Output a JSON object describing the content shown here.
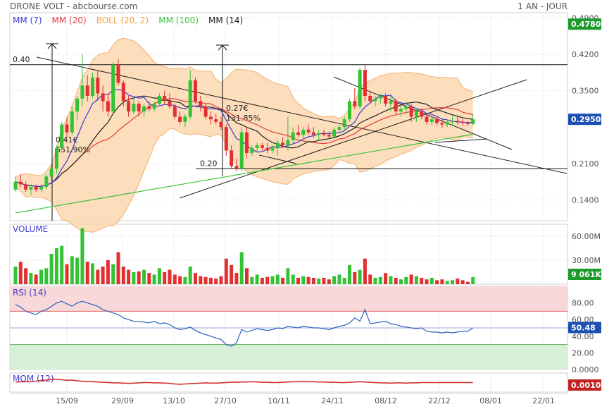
{
  "header": {
    "title": "DRONE VOLT - abcbourse.com",
    "period": "1 AN - JOUR"
  },
  "legend": [
    {
      "label": "MM (7)",
      "color": "#3b3bd6"
    },
    {
      "label": "MM (20)",
      "color": "#e23c3c"
    },
    {
      "label": "BOLL (20, 2)",
      "color": "#f0a040"
    },
    {
      "label": "MM (100)",
      "color": "#3cc23c"
    },
    {
      "label": "MM (14)",
      "color": "#222222"
    }
  ],
  "colors": {
    "up": "#33c233",
    "down": "#e23030",
    "boll_fill": "#fbd7b0",
    "boll_line": "#f4b070",
    "rsi_high": "#f8d8d8",
    "rsi_low": "#d8efd8",
    "badge_green": "#1d9a2b",
    "badge_blue": "#1b4fb2",
    "badge_red": "#c42222"
  },
  "x_ticks": [
    "15/09",
    "29/09",
    "13/10",
    "27/10",
    "10/11",
    "24/11",
    "08/12",
    "22/12",
    "08/01",
    "22/01"
  ],
  "price_axis": {
    "ticks": [
      "0.4900",
      "0.4200",
      "0.3500",
      "0.2100",
      "0.1400"
    ],
    "last": "0.2950",
    "badge": "0.4780",
    "ymin": 0.1,
    "ymax": 0.5
  },
  "volume_axis": {
    "label": "VOLUME",
    "ticks": [
      "60.00M",
      "30.00M"
    ],
    "last": "9 061K"
  },
  "rsi_axis": {
    "label": "RSI (14)",
    "ticks": [
      "80.00",
      "60.00",
      "40.00",
      "20.00",
      "0.0000"
    ],
    "last": "50.48"
  },
  "mom_axis": {
    "label": "MOM (12)",
    "last": "0.0010"
  },
  "annotations": [
    {
      "text": "0.40"
    },
    {
      "text": "0.20"
    },
    {
      "text": "0.41€"
    },
    {
      "text": "651.90%"
    },
    {
      "text": "0.27€"
    },
    {
      "text": "131.85%"
    }
  ],
  "chart_data": {
    "type": "candlestick",
    "series": [
      {
        "name": "OHLC",
        "values": [
          [
            0.16,
            0.185,
            0.155,
            0.175
          ],
          [
            0.175,
            0.19,
            0.165,
            0.17
          ],
          [
            0.17,
            0.175,
            0.155,
            0.16
          ],
          [
            0.16,
            0.17,
            0.15,
            0.165
          ],
          [
            0.165,
            0.17,
            0.155,
            0.16
          ],
          [
            0.16,
            0.17,
            0.155,
            0.165
          ],
          [
            0.165,
            0.19,
            0.16,
            0.185
          ],
          [
            0.185,
            0.21,
            0.175,
            0.2
          ],
          [
            0.2,
            0.245,
            0.19,
            0.24
          ],
          [
            0.24,
            0.29,
            0.235,
            0.285
          ],
          [
            0.285,
            0.3,
            0.26,
            0.27
          ],
          [
            0.27,
            0.32,
            0.265,
            0.31
          ],
          [
            0.31,
            0.34,
            0.295,
            0.335
          ],
          [
            0.335,
            0.42,
            0.32,
            0.36
          ],
          [
            0.36,
            0.38,
            0.33,
            0.34
          ],
          [
            0.34,
            0.385,
            0.335,
            0.375
          ],
          [
            0.375,
            0.39,
            0.33,
            0.345
          ],
          [
            0.345,
            0.36,
            0.31,
            0.33
          ],
          [
            0.33,
            0.345,
            0.3,
            0.31
          ],
          [
            0.31,
            0.405,
            0.305,
            0.4
          ],
          [
            0.4,
            0.41,
            0.36,
            0.365
          ],
          [
            0.365,
            0.37,
            0.32,
            0.33
          ],
          [
            0.33,
            0.34,
            0.3,
            0.31
          ],
          [
            0.31,
            0.335,
            0.305,
            0.325
          ],
          [
            0.325,
            0.33,
            0.3,
            0.31
          ],
          [
            0.31,
            0.325,
            0.3,
            0.32
          ],
          [
            0.32,
            0.33,
            0.31,
            0.315
          ],
          [
            0.315,
            0.33,
            0.31,
            0.325
          ],
          [
            0.325,
            0.345,
            0.32,
            0.34
          ],
          [
            0.34,
            0.35,
            0.325,
            0.33
          ],
          [
            0.33,
            0.345,
            0.315,
            0.32
          ],
          [
            0.32,
            0.325,
            0.295,
            0.3
          ],
          [
            0.3,
            0.31,
            0.285,
            0.29
          ],
          [
            0.29,
            0.305,
            0.28,
            0.3
          ],
          [
            0.3,
            0.39,
            0.295,
            0.37
          ],
          [
            0.37,
            0.375,
            0.325,
            0.33
          ],
          [
            0.33,
            0.34,
            0.31,
            0.32
          ],
          [
            0.32,
            0.325,
            0.295,
            0.3
          ],
          [
            0.3,
            0.31,
            0.285,
            0.295
          ],
          [
            0.295,
            0.305,
            0.285,
            0.29
          ],
          [
            0.29,
            0.3,
            0.275,
            0.28
          ],
          [
            0.28,
            0.285,
            0.225,
            0.235
          ],
          [
            0.235,
            0.245,
            0.2,
            0.205
          ],
          [
            0.205,
            0.22,
            0.195,
            0.2
          ],
          [
            0.2,
            0.28,
            0.195,
            0.27
          ],
          [
            0.27,
            0.28,
            0.22,
            0.23
          ],
          [
            0.23,
            0.245,
            0.225,
            0.24
          ],
          [
            0.24,
            0.25,
            0.23,
            0.245
          ],
          [
            0.245,
            0.25,
            0.235,
            0.24
          ],
          [
            0.24,
            0.25,
            0.23,
            0.235
          ],
          [
            0.235,
            0.245,
            0.23,
            0.24
          ],
          [
            0.24,
            0.255,
            0.225,
            0.25
          ],
          [
            0.25,
            0.26,
            0.24,
            0.245
          ],
          [
            0.245,
            0.3,
            0.235,
            0.255
          ],
          [
            0.255,
            0.28,
            0.25,
            0.27
          ],
          [
            0.27,
            0.285,
            0.26,
            0.265
          ],
          [
            0.265,
            0.28,
            0.255,
            0.275
          ],
          [
            0.275,
            0.285,
            0.265,
            0.27
          ],
          [
            0.27,
            0.28,
            0.26,
            0.265
          ],
          [
            0.265,
            0.275,
            0.255,
            0.268
          ],
          [
            0.268,
            0.275,
            0.262,
            0.265
          ],
          [
            0.265,
            0.272,
            0.258,
            0.262
          ],
          [
            0.262,
            0.28,
            0.258,
            0.275
          ],
          [
            0.275,
            0.285,
            0.27,
            0.28
          ],
          [
            0.28,
            0.3,
            0.275,
            0.295
          ],
          [
            0.295,
            0.335,
            0.29,
            0.33
          ],
          [
            0.33,
            0.355,
            0.315,
            0.32
          ],
          [
            0.32,
            0.395,
            0.315,
            0.39
          ],
          [
            0.39,
            0.4,
            0.33,
            0.34
          ],
          [
            0.34,
            0.35,
            0.325,
            0.33
          ],
          [
            0.33,
            0.34,
            0.32,
            0.335
          ],
          [
            0.335,
            0.345,
            0.325,
            0.34
          ],
          [
            0.34,
            0.345,
            0.32,
            0.325
          ],
          [
            0.325,
            0.34,
            0.31,
            0.33
          ],
          [
            0.33,
            0.335,
            0.305,
            0.31
          ],
          [
            0.31,
            0.32,
            0.3,
            0.315
          ],
          [
            0.315,
            0.33,
            0.305,
            0.32
          ],
          [
            0.32,
            0.325,
            0.29,
            0.3
          ],
          [
            0.3,
            0.315,
            0.29,
            0.31
          ],
          [
            0.31,
            0.315,
            0.295,
            0.3
          ],
          [
            0.3,
            0.305,
            0.285,
            0.29
          ],
          [
            0.29,
            0.3,
            0.283,
            0.295
          ],
          [
            0.295,
            0.3,
            0.283,
            0.288
          ],
          [
            0.288,
            0.295,
            0.278,
            0.285
          ],
          [
            0.285,
            0.295,
            0.28,
            0.29
          ],
          [
            0.29,
            0.3,
            0.283,
            0.292
          ],
          [
            0.292,
            0.3,
            0.285,
            0.29
          ],
          [
            0.29,
            0.295,
            0.283,
            0.288
          ],
          [
            0.288,
            0.292,
            0.282,
            0.286
          ],
          [
            0.286,
            0.305,
            0.283,
            0.295
          ]
        ]
      },
      {
        "name": "VOLUME",
        "values": [
          22,
          28,
          20,
          14,
          12,
          18,
          20,
          38,
          45,
          48,
          25,
          35,
          33,
          70,
          28,
          26,
          18,
          22,
          30,
          25,
          40,
          22,
          18,
          15,
          16,
          18,
          14,
          12,
          20,
          15,
          18,
          12,
          10,
          9,
          22,
          14,
          10,
          9,
          8,
          7,
          10,
          32,
          24,
          14,
          40,
          20,
          9,
          12,
          8,
          9,
          10,
          12,
          8,
          20,
          12,
          8,
          10,
          9,
          8,
          7,
          8,
          6,
          10,
          12,
          8,
          24,
          15,
          18,
          32,
          12,
          8,
          9,
          14,
          10,
          8,
          6,
          9,
          12,
          10,
          8,
          6,
          8,
          5,
          6,
          4,
          5,
          7,
          5,
          3,
          9
        ]
      },
      {
        "name": "RSI (14)",
        "values": [
          78,
          75,
          70,
          68,
          66,
          70,
          72,
          76,
          80,
          82,
          79,
          76,
          80,
          82,
          80,
          78,
          76,
          72,
          70,
          68,
          66,
          62,
          60,
          58,
          58,
          57,
          56,
          58,
          55,
          56,
          54,
          50,
          48,
          49,
          51,
          47,
          44,
          42,
          40,
          38,
          36,
          30,
          28,
          32,
          48,
          45,
          47,
          49,
          48,
          47,
          48,
          50,
          49,
          52,
          51,
          50,
          52,
          51,
          50,
          50,
          49,
          48,
          50,
          52,
          53,
          56,
          62,
          58,
          72,
          55,
          56,
          57,
          58,
          55,
          54,
          52,
          51,
          50,
          49,
          50,
          46,
          45,
          45,
          44,
          45,
          44,
          45,
          46,
          46,
          50
        ]
      },
      {
        "name": "MOM (12)",
        "values": [
          0.02,
          0.025,
          0.03,
          0.04,
          0.05,
          0.08,
          0.09,
          0.11,
          0.12,
          0.1,
          0.08,
          0.09,
          0.06,
          0.05,
          0.04,
          0.03,
          0.02,
          0.01,
          0.0,
          -0.01,
          -0.01,
          -0.02,
          -0.03,
          -0.02,
          -0.01,
          0.0,
          0.0,
          -0.01,
          -0.01,
          -0.02,
          -0.03,
          -0.05,
          -0.06,
          -0.05,
          -0.04,
          -0.03,
          -0.02,
          -0.01,
          -0.02,
          -0.02,
          -0.01,
          0.0,
          0.01,
          0.01,
          0.02,
          0.02,
          0.03,
          0.02,
          0.01,
          0.01,
          0.0,
          0.0,
          0.01,
          0.02,
          0.03,
          0.03,
          0.04,
          0.03,
          0.03,
          0.02,
          0.02,
          0.01,
          0.01,
          0.0,
          0.0,
          0.01,
          0.02,
          0.03,
          0.02,
          0.01,
          0.0,
          -0.01,
          -0.01,
          -0.02,
          -0.01,
          -0.01,
          -0.02,
          -0.01,
          -0.01,
          0.0,
          0.0,
          0.0,
          0.0,
          0.001,
          0.0,
          0.001,
          0.0,
          0.001,
          0.0,
          0.001
        ]
      }
    ],
    "hlines": [
      0.4,
      0.2
    ],
    "ylim": [
      0.1,
      0.5
    ],
    "xlabel": "",
    "ylabel": ""
  }
}
